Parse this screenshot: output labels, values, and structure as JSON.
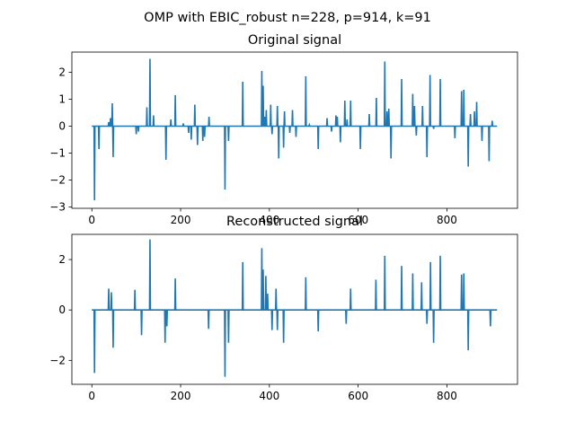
{
  "figure": {
    "suptitle": "OMP with EBIC_robust n=228, p=914, k=91"
  },
  "chart_data": [
    {
      "type": "line",
      "title": "Original signal",
      "xlabel": "",
      "ylabel": "",
      "xlim": [
        -45,
        959
      ],
      "ylim": [
        -3.05,
        2.75
      ],
      "xticks": [
        0,
        200,
        400,
        600,
        800
      ],
      "yticks": [
        -3,
        -2,
        -1,
        0,
        1,
        2
      ],
      "grid": false,
      "legend": "none",
      "color": "#1f77b4",
      "x_count": 914,
      "spikes": [
        [
          6,
          -2.75
        ],
        [
          16,
          -0.85
        ],
        [
          38,
          0.15
        ],
        [
          42,
          0.3
        ],
        [
          46,
          0.85
        ],
        [
          48,
          -1.15
        ],
        [
          100,
          -0.3
        ],
        [
          105,
          -0.2
        ],
        [
          124,
          0.7
        ],
        [
          131,
          2.5
        ],
        [
          139,
          0.4
        ],
        [
          167,
          -1.25
        ],
        [
          178,
          0.25
        ],
        [
          188,
          1.15
        ],
        [
          206,
          0.1
        ],
        [
          218,
          -0.25
        ],
        [
          224,
          -0.5
        ],
        [
          232,
          0.8
        ],
        [
          238,
          -0.7
        ],
        [
          250,
          -0.55
        ],
        [
          254,
          -0.4
        ],
        [
          264,
          0.35
        ],
        [
          300,
          -2.35
        ],
        [
          308,
          -0.55
        ],
        [
          340,
          1.65
        ],
        [
          383,
          2.05
        ],
        [
          386,
          1.5
        ],
        [
          390,
          0.35
        ],
        [
          393,
          0.6
        ],
        [
          403,
          0.8
        ],
        [
          406,
          -0.3
        ],
        [
          418,
          0.75
        ],
        [
          421,
          -1.2
        ],
        [
          432,
          -0.8
        ],
        [
          434,
          0.55
        ],
        [
          446,
          -0.25
        ],
        [
          452,
          0.6
        ],
        [
          460,
          -0.4
        ],
        [
          482,
          1.85
        ],
        [
          490,
          0.05
        ],
        [
          510,
          -0.85
        ],
        [
          530,
          0.3
        ],
        [
          540,
          -0.2
        ],
        [
          550,
          0.4
        ],
        [
          553,
          0.35
        ],
        [
          560,
          -0.6
        ],
        [
          570,
          0.95
        ],
        [
          575,
          0.25
        ],
        [
          583,
          0.95
        ],
        [
          605,
          -0.85
        ],
        [
          625,
          0.45
        ],
        [
          641,
          1.05
        ],
        [
          660,
          2.4
        ],
        [
          665,
          0.55
        ],
        [
          669,
          0.65
        ],
        [
          674,
          -1.2
        ],
        [
          698,
          1.75
        ],
        [
          723,
          1.2
        ],
        [
          727,
          0.75
        ],
        [
          731,
          -0.35
        ],
        [
          745,
          0.75
        ],
        [
          755,
          -1.15
        ],
        [
          762,
          1.9
        ],
        [
          770,
          -0.1
        ],
        [
          785,
          1.75
        ],
        [
          818,
          -0.45
        ],
        [
          833,
          1.3
        ],
        [
          838,
          1.35
        ],
        [
          848,
          -1.5
        ],
        [
          853,
          0.45
        ],
        [
          862,
          0.55
        ],
        [
          867,
          0.9
        ],
        [
          879,
          -0.55
        ],
        [
          895,
          -1.3
        ],
        [
          902,
          0.2
        ]
      ]
    },
    {
      "type": "line",
      "title": "Reconstructed signal",
      "xlabel": "",
      "ylabel": "",
      "xlim": [
        -45,
        959
      ],
      "ylim": [
        -2.95,
        3.0
      ],
      "xticks": [
        0,
        200,
        400,
        600,
        800
      ],
      "yticks": [
        -2,
        0,
        2
      ],
      "grid": false,
      "legend": "none",
      "color": "#1f77b4",
      "x_count": 914,
      "spikes": [
        [
          6,
          -2.5
        ],
        [
          38,
          0.85
        ],
        [
          44,
          0.7
        ],
        [
          48,
          -1.5
        ],
        [
          97,
          0.8
        ],
        [
          112,
          -1.0
        ],
        [
          131,
          2.8
        ],
        [
          165,
          -1.3
        ],
        [
          169,
          -0.65
        ],
        [
          188,
          1.25
        ],
        [
          263,
          -0.75
        ],
        [
          300,
          -2.65
        ],
        [
          308,
          -1.3
        ],
        [
          340,
          1.9
        ],
        [
          383,
          2.45
        ],
        [
          386,
          1.6
        ],
        [
          392,
          1.35
        ],
        [
          396,
          0.65
        ],
        [
          406,
          -0.8
        ],
        [
          415,
          0.85
        ],
        [
          418,
          -0.8
        ],
        [
          432,
          -1.3
        ],
        [
          482,
          1.3
        ],
        [
          510,
          -0.85
        ],
        [
          573,
          -0.55
        ],
        [
          583,
          0.85
        ],
        [
          640,
          1.2
        ],
        [
          660,
          2.15
        ],
        [
          698,
          1.75
        ],
        [
          723,
          1.45
        ],
        [
          743,
          1.1
        ],
        [
          755,
          -0.55
        ],
        [
          763,
          1.9
        ],
        [
          770,
          -1.3
        ],
        [
          785,
          2.15
        ],
        [
          833,
          1.4
        ],
        [
          838,
          1.45
        ],
        [
          848,
          -1.6
        ],
        [
          898,
          -0.65
        ]
      ]
    }
  ]
}
